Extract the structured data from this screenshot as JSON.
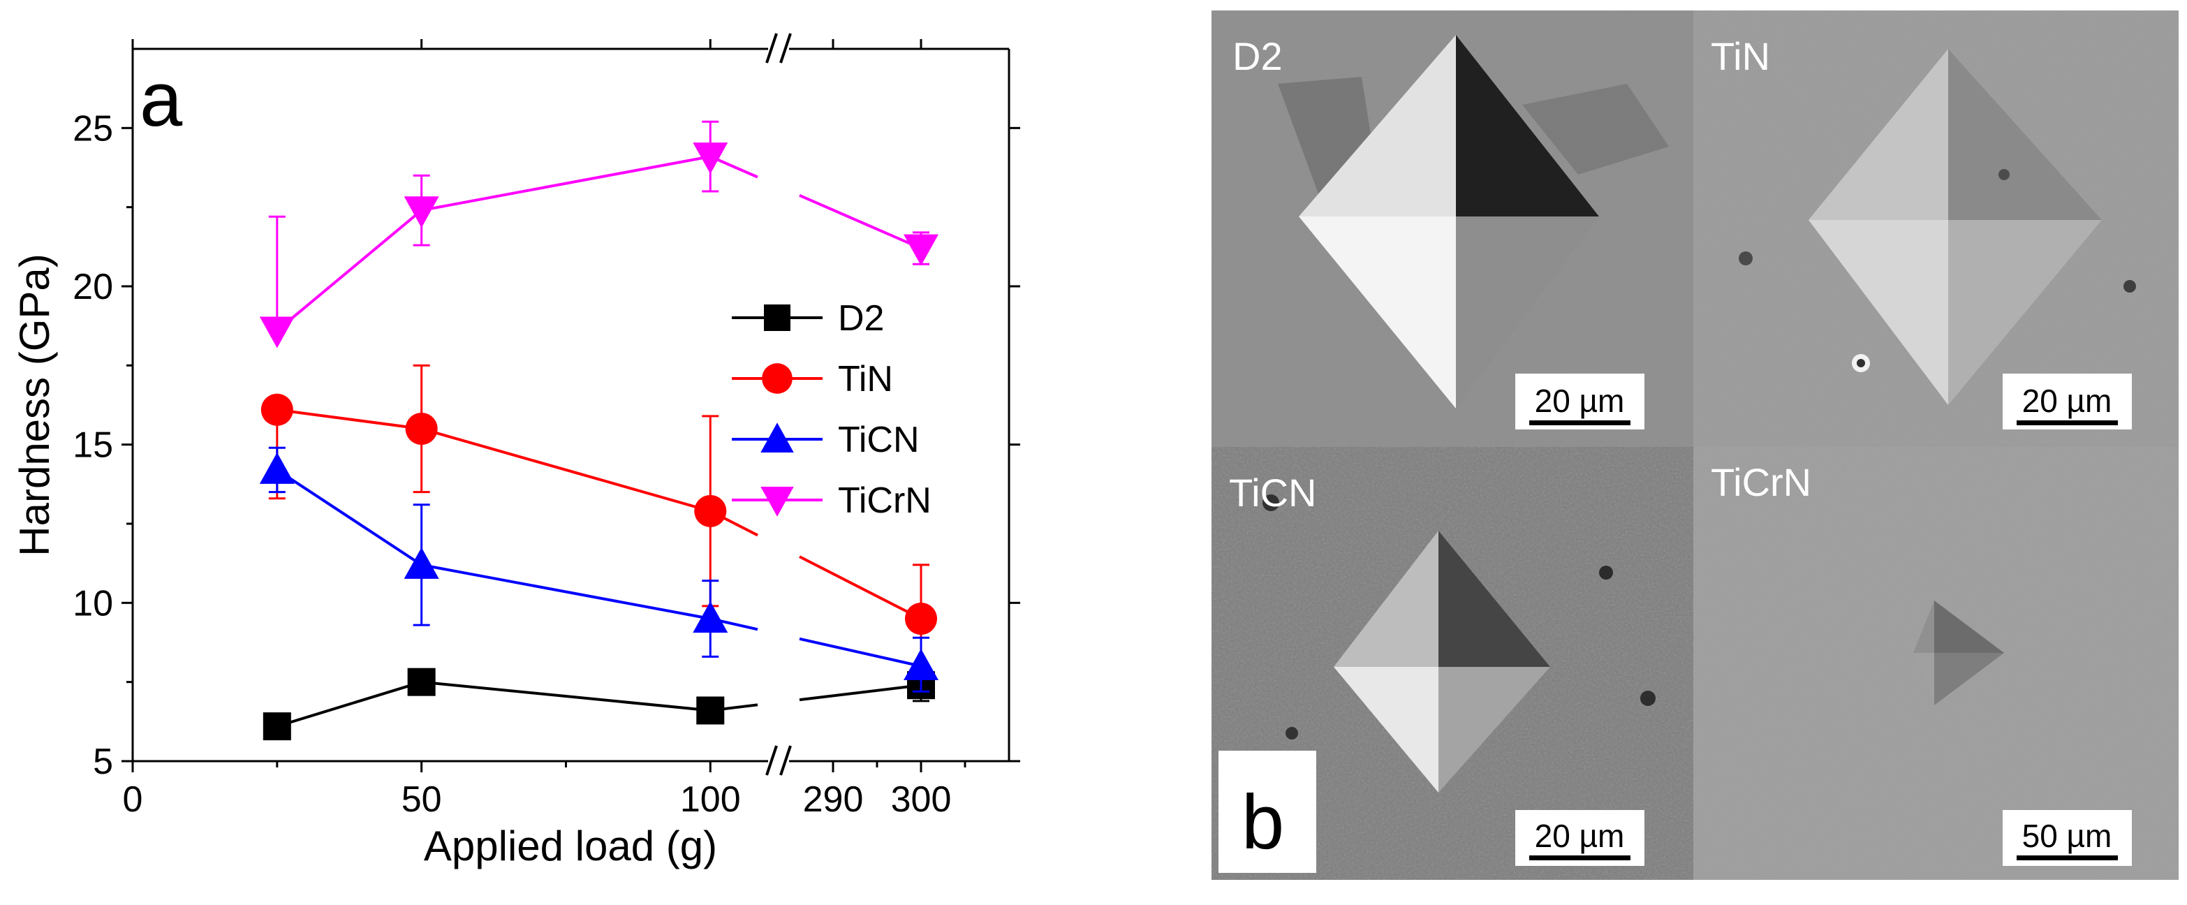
{
  "chart_data": {
    "type": "line",
    "panel_label": "a",
    "xlabel": "Applied load (g)",
    "ylabel": "Hardness (GPa)",
    "ylim": [
      5,
      27.5
    ],
    "x_axis_break": true,
    "x_tick_labels": [
      "0",
      "50",
      "100",
      "290",
      "300"
    ],
    "y_tick_labels": [
      "5",
      "10",
      "15",
      "20",
      "25"
    ],
    "x": [
      25,
      50,
      100,
      300
    ],
    "series": [
      {
        "name": "D2",
        "color": "#000000",
        "marker": "square",
        "values": [
          6.1,
          7.5,
          6.6,
          7.4
        ],
        "err_upper": [
          0.2,
          0.2,
          0.2,
          0.4
        ],
        "err_lower": [
          0.2,
          0.2,
          0.2,
          0.5
        ]
      },
      {
        "name": "TiN",
        "color": "#ff0000",
        "marker": "circle",
        "values": [
          16.1,
          15.5,
          12.9,
          9.5
        ],
        "err_upper": [
          0,
          2.0,
          3.0,
          1.7
        ],
        "err_lower": [
          2.8,
          2.0,
          3.0,
          1.7
        ]
      },
      {
        "name": "TiCN",
        "color": "#0000ff",
        "marker": "triangle-up",
        "values": [
          14.2,
          11.2,
          9.5,
          8.0
        ],
        "err_upper": [
          0.7,
          1.9,
          1.2,
          0.9
        ],
        "err_lower": [
          0.7,
          1.9,
          1.2,
          0.8
        ]
      },
      {
        "name": "TiCrN",
        "color": "#ff00ff",
        "marker": "triangle-down",
        "values": [
          18.6,
          22.4,
          24.1,
          21.2
        ],
        "err_upper": [
          3.6,
          1.1,
          1.1,
          0.5
        ],
        "err_lower": [
          0,
          1.1,
          1.1,
          0.5
        ]
      }
    ],
    "legend": "center-right"
  },
  "sem_panel": {
    "panel_label": "b",
    "images": [
      {
        "label": "D2",
        "scale_bar": "20 µm"
      },
      {
        "label": "TiN",
        "scale_bar": "20 µm"
      },
      {
        "label": "TiCN",
        "scale_bar": "20 µm"
      },
      {
        "label": "TiCrN",
        "scale_bar": "50 µm"
      }
    ]
  }
}
